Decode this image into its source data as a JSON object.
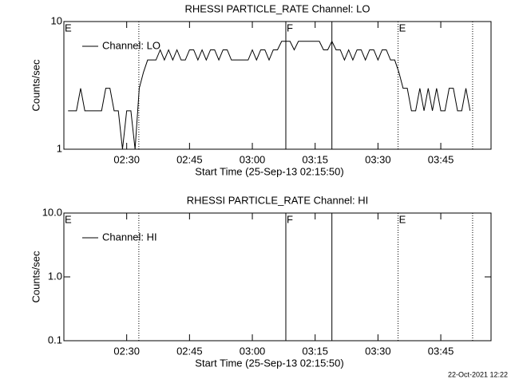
{
  "chart_data": [
    {
      "type": "line",
      "title": "RHESSI PARTICLE_RATE Channel: LO",
      "xlabel": "Start Time (25-Sep-13 02:15:50)",
      "ylabel": "Counts/sec",
      "log_y": true,
      "xlim": [
        135,
        237
      ],
      "ylim": [
        1,
        10
      ],
      "yticks": [
        1,
        10
      ],
      "xticks": [
        {
          "value": 150,
          "label": "02:30"
        },
        {
          "value": 165,
          "label": "02:45"
        },
        {
          "value": 180,
          "label": "03:00"
        },
        {
          "value": 195,
          "label": "03:15"
        },
        {
          "value": 210,
          "label": "03:30"
        },
        {
          "value": 225,
          "label": "03:45"
        }
      ],
      "vlines": [
        {
          "x": 152.9,
          "style": "dotted"
        },
        {
          "x": 188,
          "style": "solid"
        },
        {
          "x": 199,
          "style": "solid"
        },
        {
          "x": 214.8,
          "style": "dotted"
        },
        {
          "x": 232.6,
          "style": "dotted"
        }
      ],
      "annotations": [
        {
          "text": "E",
          "x": 135.2
        },
        {
          "text": "F",
          "x": 188.2
        },
        {
          "text": "E",
          "x": 215
        }
      ],
      "x": [
        136,
        137,
        138,
        139,
        140,
        141,
        142,
        143,
        144,
        145,
        146,
        147,
        148,
        149,
        150,
        151,
        152,
        153,
        154,
        155,
        156,
        157,
        158,
        159,
        160,
        161,
        162,
        163,
        164,
        165,
        166,
        167,
        168,
        169,
        170,
        171,
        172,
        173,
        174,
        175,
        176,
        177,
        178,
        179,
        180,
        181,
        182,
        183,
        184,
        185,
        186,
        187,
        188,
        189,
        190,
        191,
        192,
        193,
        194,
        195,
        196,
        197,
        198,
        199,
        200,
        201,
        202,
        203,
        204,
        205,
        206,
        207,
        208,
        209,
        210,
        211,
        212,
        213,
        214,
        215,
        216,
        217,
        218,
        219,
        220,
        221,
        222,
        223,
        224,
        225,
        226,
        227,
        228,
        229,
        230,
        231,
        232
      ],
      "series": [
        {
          "name": "Channel: LO",
          "color": "#000000",
          "values": [
            2,
            2,
            2,
            3,
            2,
            2,
            2,
            2,
            2,
            3,
            3,
            2,
            2,
            1,
            2,
            2,
            1,
            3,
            4,
            5,
            5,
            5,
            6,
            5,
            6,
            5,
            6,
            5,
            5,
            6,
            6,
            5,
            6,
            5,
            6,
            6,
            5,
            6,
            6,
            5,
            5,
            5,
            5,
            5,
            6,
            5,
            6,
            6,
            5,
            6,
            6,
            7,
            7,
            7,
            6,
            7,
            7,
            7,
            7,
            7,
            7,
            6,
            6,
            7,
            6,
            6,
            5,
            6,
            5,
            6,
            6,
            5,
            6,
            6,
            5,
            6,
            6,
            5,
            5,
            4,
            3,
            3,
            2,
            2,
            3,
            2,
            3,
            2,
            3,
            2,
            2,
            3,
            3,
            2,
            2,
            3,
            2
          ]
        }
      ]
    },
    {
      "type": "line",
      "title": "RHESSI PARTICLE_RATE Channel: HI",
      "xlabel": "Start Time (25-Sep-13 02:15:50)",
      "ylabel": "Counts/sec",
      "log_y": true,
      "xlim": [
        135,
        237
      ],
      "ylim": [
        0.1,
        10
      ],
      "yticks": [
        {
          "value": 0.1,
          "label": "0.1"
        },
        {
          "value": 1,
          "label": "1.0"
        },
        {
          "value": 10,
          "label": "10.0"
        }
      ],
      "xticks": [
        {
          "value": 150,
          "label": "02:30"
        },
        {
          "value": 165,
          "label": "02:45"
        },
        {
          "value": 180,
          "label": "03:00"
        },
        {
          "value": 195,
          "label": "03:15"
        },
        {
          "value": 210,
          "label": "03:30"
        },
        {
          "value": 225,
          "label": "03:45"
        }
      ],
      "vlines": [
        {
          "x": 152.9,
          "style": "dotted"
        },
        {
          "x": 188,
          "style": "solid"
        },
        {
          "x": 199,
          "style": "solid"
        },
        {
          "x": 214.8,
          "style": "dotted"
        },
        {
          "x": 232.6,
          "style": "dotted"
        }
      ],
      "annotations": [
        {
          "text": "E",
          "x": 135.2
        },
        {
          "text": "F",
          "x": 188.2
        },
        {
          "text": "E",
          "x": 215
        }
      ],
      "x": [],
      "series": [
        {
          "name": "Channel: HI",
          "color": "#000000",
          "values": []
        }
      ]
    }
  ],
  "footer": "22-Oct-2021 12:22"
}
